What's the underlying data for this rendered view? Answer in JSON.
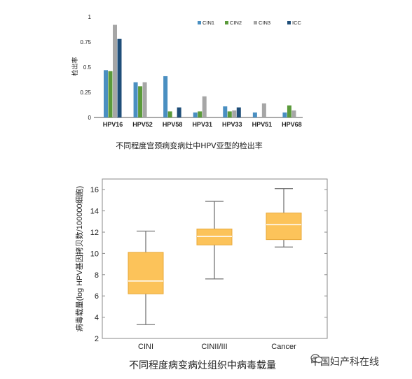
{
  "chart_data": [
    {
      "type": "bar",
      "categories": [
        "HPV16",
        "HPV52",
        "HPV58",
        "HPV31",
        "HPV33",
        "HPV51",
        "HPV68"
      ],
      "series": [
        {
          "name": "CIN1",
          "color": "#4a8fc1",
          "values": [
            0.47,
            0.35,
            0.41,
            0.05,
            0.11,
            0.05,
            0.05
          ]
        },
        {
          "name": "CIN2",
          "color": "#5a9a3a",
          "values": [
            0.46,
            0.31,
            0.06,
            0.06,
            0.06,
            0.0,
            0.12
          ]
        },
        {
          "name": "CIN3",
          "color": "#a6a6a6",
          "values": [
            0.92,
            0.35,
            0.0,
            0.21,
            0.07,
            0.14,
            0.07
          ]
        },
        {
          "name": "ICC",
          "color": "#1f4e79",
          "values": [
            0.78,
            0.0,
            0.1,
            0.0,
            0.1,
            0.0,
            0.0
          ]
        }
      ],
      "yticks": [
        "0",
        "0.25",
        "0.5",
        "0.75",
        "1"
      ],
      "ylim": [
        0,
        1
      ],
      "ylabel": "检出率",
      "xlabel": "",
      "caption": "不同程度宫颈病变病灶中HPV亚型的检出率",
      "legend_position": "top-right"
    },
    {
      "type": "box",
      "categories": [
        "CINI",
        "CINII/III",
        "Cancer"
      ],
      "boxes": [
        {
          "min": 3.3,
          "q1": 6.2,
          "median": 7.4,
          "q3": 10.1,
          "max": 12.1
        },
        {
          "min": 7.6,
          "q1": 10.8,
          "median": 11.6,
          "q3": 12.3,
          "max": 14.9
        },
        {
          "min": 10.6,
          "q1": 11.3,
          "median": 12.7,
          "q3": 13.8,
          "max": 16.1
        }
      ],
      "box_color": "#fcc35a",
      "yticks": [
        "2",
        "4",
        "6",
        "8",
        "10",
        "12",
        "14",
        "16"
      ],
      "ylim": [
        2,
        17
      ],
      "ylabel": "病毒载量(log HPV基因拷贝数/100000细胞)",
      "xlabel": "",
      "caption": "不同程度病变病灶组织中病毒载量"
    }
  ],
  "watermark": {
    "text": "中国妇产科在线",
    "icon": "wechat-icon"
  }
}
